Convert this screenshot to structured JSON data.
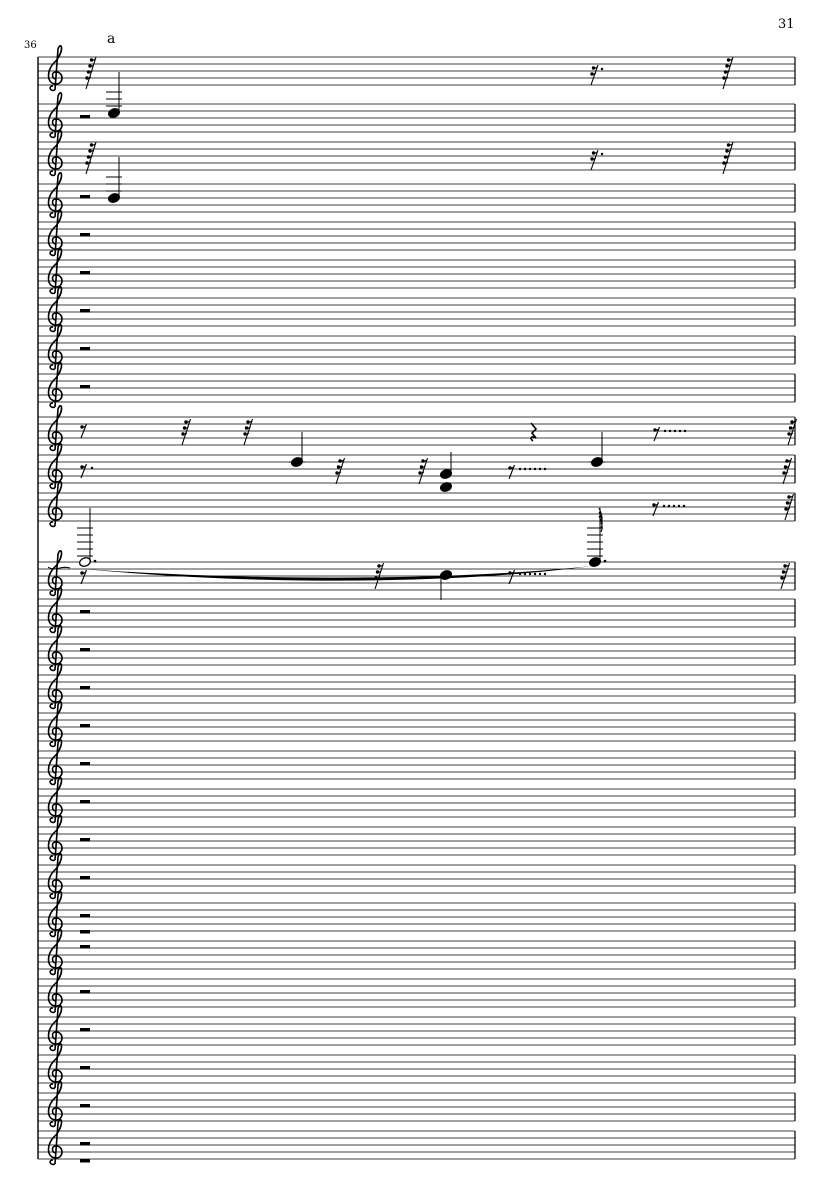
{
  "page_number": "31",
  "measure_number": "36",
  "rehearsal_text": "a",
  "clef": "treble",
  "staff_count": 28,
  "colors": {
    "ink": "#000000",
    "paper": "#ffffff"
  }
}
